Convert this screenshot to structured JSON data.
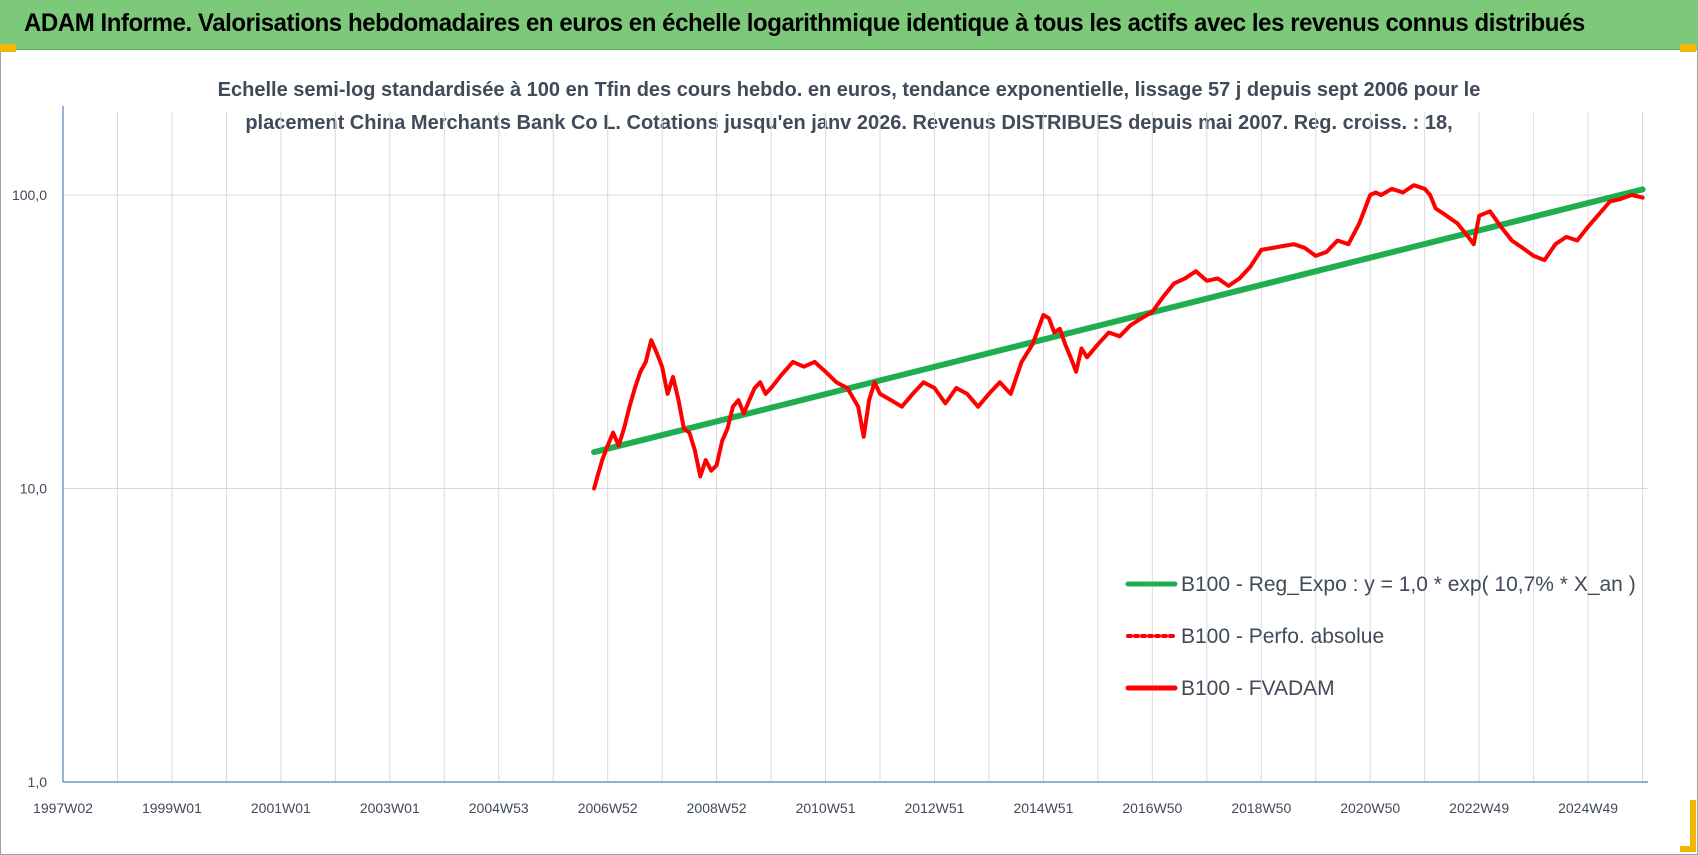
{
  "banner": {
    "title": "ADAM Informe. Valorisations hebdomadaires en euros en échelle logarithmique identique à tous les actifs avec les revenus connus distribués",
    "background": "#7dc97a"
  },
  "chart_data": {
    "type": "line",
    "title_line1": "Echelle semi-log standardisée à 100 en Tfin des cours hebdo. en euros, tendance exponentielle, lissage 57 j depuis sept 2006 pour le",
    "title_line2": "placement China Merchants Bank Co L. Cotations jusqu'en janv 2026. Revenus DISTRIBUES depuis mai 2007. Reg. croiss. : 18,",
    "y_scale": "log",
    "ylim": [
      1,
      200
    ],
    "y_ticks": [
      {
        "value": 1,
        "label": "1,0"
      },
      {
        "value": 10,
        "label": "10,0"
      },
      {
        "value": 100,
        "label": "100,0"
      }
    ],
    "xlim": [
      1997.0,
      2026.1
    ],
    "x_ticks": [
      {
        "value": 1997.0,
        "label": "1997W02"
      },
      {
        "value": 1999.0,
        "label": "1999W01"
      },
      {
        "value": 2001.0,
        "label": "2001W01"
      },
      {
        "value": 2003.0,
        "label": "2003W01"
      },
      {
        "value": 2005.0,
        "label": "2004W53"
      },
      {
        "value": 2007.0,
        "label": "2006W52"
      },
      {
        "value": 2009.0,
        "label": "2008W52"
      },
      {
        "value": 2011.0,
        "label": "2010W51"
      },
      {
        "value": 2013.0,
        "label": "2012W51"
      },
      {
        "value": 2015.0,
        "label": "2014W51"
      },
      {
        "value": 2017.0,
        "label": "2016W50"
      },
      {
        "value": 2019.0,
        "label": "2018W50"
      },
      {
        "value": 2021.0,
        "label": "2020W50"
      },
      {
        "value": 2023.0,
        "label": "2022W49"
      },
      {
        "value": 2025.0,
        "label": "2024W49"
      }
    ],
    "grid": true,
    "legend_position": "lower-right",
    "series": [
      {
        "name": "B100 - Reg_Expo : y = 1,0 * exp( 10,7% *  X_an )",
        "color": "#1fae4f",
        "style": "solid",
        "x": [
          2006.75,
          2026.0
        ],
        "y": [
          13.3,
          104.5
        ]
      },
      {
        "name": "B100 - Perfo. absolue",
        "color": "#ff0000",
        "style": "dotted",
        "x": [],
        "y": []
      },
      {
        "name": "B100 - FVADAM",
        "color": "#ff0000",
        "style": "solid",
        "x": [
          2006.75,
          2006.8,
          2006.9,
          2007.0,
          2007.1,
          2007.2,
          2007.3,
          2007.4,
          2007.5,
          2007.6,
          2007.7,
          2007.8,
          2007.9,
          2008.0,
          2008.1,
          2008.2,
          2008.3,
          2008.4,
          2008.5,
          2008.6,
          2008.7,
          2008.8,
          2008.9,
          2009.0,
          2009.1,
          2009.2,
          2009.3,
          2009.4,
          2009.5,
          2009.6,
          2009.7,
          2009.8,
          2009.9,
          2010.0,
          2010.2,
          2010.4,
          2010.6,
          2010.8,
          2011.0,
          2011.2,
          2011.4,
          2011.6,
          2011.7,
          2011.8,
          2011.9,
          2012.0,
          2012.2,
          2012.4,
          2012.6,
          2012.8,
          2013.0,
          2013.2,
          2013.4,
          2013.6,
          2013.8,
          2014.0,
          2014.2,
          2014.4,
          2014.6,
          2014.8,
          2015.0,
          2015.1,
          2015.2,
          2015.3,
          2015.4,
          2015.5,
          2015.6,
          2015.7,
          2015.8,
          2016.0,
          2016.2,
          2016.4,
          2016.6,
          2016.8,
          2017.0,
          2017.2,
          2017.4,
          2017.6,
          2017.8,
          2018.0,
          2018.2,
          2018.4,
          2018.6,
          2018.8,
          2019.0,
          2019.2,
          2019.4,
          2019.6,
          2019.8,
          2020.0,
          2020.2,
          2020.4,
          2020.6,
          2020.8,
          2021.0,
          2021.1,
          2021.2,
          2021.4,
          2021.6,
          2021.8,
          2022.0,
          2022.1,
          2022.2,
          2022.4,
          2022.6,
          2022.8,
          2022.9,
          2023.0,
          2023.2,
          2023.4,
          2023.6,
          2023.8,
          2024.0,
          2024.2,
          2024.4,
          2024.6,
          2024.8,
          2025.0,
          2025.2,
          2025.4,
          2025.6,
          2025.8,
          2026.0
        ],
        "y": [
          10.0,
          10.8,
          12.5,
          14.0,
          15.5,
          14.0,
          16.0,
          19.0,
          22.0,
          25.0,
          27.0,
          32.0,
          29.0,
          26.0,
          21.0,
          24.0,
          20.0,
          16.0,
          15.5,
          13.5,
          11.0,
          12.5,
          11.5,
          12.0,
          14.5,
          16.0,
          19.0,
          20.0,
          18.0,
          20.0,
          22.0,
          23.0,
          21.0,
          22.0,
          24.5,
          27.0,
          26.0,
          27.0,
          25.0,
          23.0,
          22.0,
          19.0,
          15.0,
          20.0,
          23.0,
          21.0,
          20.0,
          19.0,
          21.0,
          23.0,
          22.0,
          19.5,
          22.0,
          21.0,
          19.0,
          21.0,
          23.0,
          21.0,
          27.0,
          31.0,
          39.0,
          38.0,
          34.0,
          35.0,
          31.0,
          28.0,
          25.0,
          30.0,
          28.0,
          31.0,
          34.0,
          33.0,
          36.0,
          38.0,
          40.0,
          45.0,
          50.0,
          52.0,
          55.0,
          51.0,
          52.0,
          49.0,
          52.0,
          57.0,
          65.0,
          66.0,
          67.0,
          68.0,
          66.0,
          62.0,
          64.0,
          70.0,
          68.0,
          80.0,
          100.0,
          102.0,
          100.0,
          105.0,
          102.0,
          108.0,
          105.0,
          100.0,
          90.0,
          85.0,
          80.0,
          72.0,
          68.0,
          85.0,
          88.0,
          78.0,
          70.0,
          66.0,
          62.0,
          60.0,
          68.0,
          72.0,
          70.0,
          78.0,
          86.0,
          95.0,
          97.0,
          100.0,
          98.0
        ]
      }
    ]
  }
}
